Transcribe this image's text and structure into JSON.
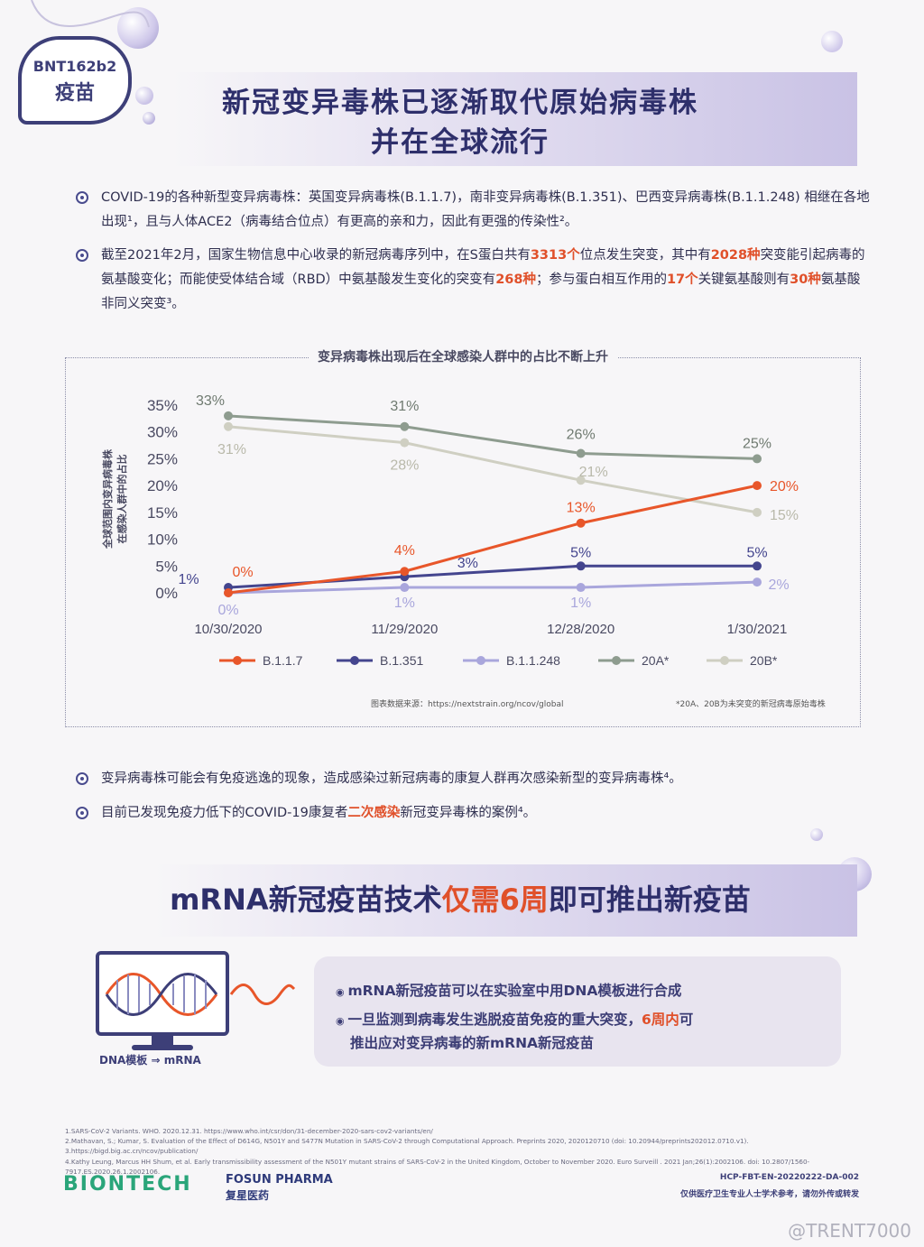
{
  "badge": {
    "line1": "BNT162b2",
    "line2": "疫苗"
  },
  "header": {
    "title_line1": "新冠变异毒株已逐渐取代原始病毒株",
    "title_line2": "并在全球流行"
  },
  "bullets1": [
    {
      "parts": [
        {
          "t": "COVID-19的各种新型变异病毒株：英国变异病毒株(B.1.1.7)，南非变异病毒株(B.1.351)、巴西变异病毒株(B.1.1.248) 相继在各地出现¹，且与人体ACE2（病毒结合位点）有更高的亲和力，因此有更强的传染性²。",
          "h": false
        }
      ]
    },
    {
      "parts": [
        {
          "t": "截至2021年2月，国家生物信息中心收录的新冠病毒序列中，在S蛋白共有",
          "h": false
        },
        {
          "t": "3313个",
          "h": true
        },
        {
          "t": "位点发生突变，其中有",
          "h": false
        },
        {
          "t": "2028种",
          "h": true
        },
        {
          "t": "突变能引起病毒的氨基酸变化；而能使受体结合域（RBD）中氨基酸发生变化的突变有",
          "h": false
        },
        {
          "t": "268种",
          "h": true
        },
        {
          "t": "；参与蛋白相互作用的",
          "h": false
        },
        {
          "t": "17个",
          "h": true
        },
        {
          "t": "关键氨基酸则有",
          "h": false
        },
        {
          "t": "30种",
          "h": true
        },
        {
          "t": "氨基酸非同义突变³。",
          "h": false
        }
      ]
    }
  ],
  "chart_data": {
    "type": "line",
    "title": "变异病毒株出现后在全球感染人群中的占比不断上升",
    "ylabel_line1": "全球范围内变异病毒株",
    "ylabel_line2": "在感染人群中的占比",
    "categories": [
      "10/30/2020",
      "11/29/2020",
      "12/28/2020",
      "1/30/2021"
    ],
    "y_ticks": [
      "0%",
      "5%",
      "10%",
      "15%",
      "20%",
      "25%",
      "30%",
      "35%"
    ],
    "ylim": [
      0,
      35
    ],
    "series": [
      {
        "name": "B.1.1.7",
        "values": [
          0,
          4,
          13,
          20
        ],
        "color": "#e8562a",
        "labels": [
          "0%",
          "4%",
          "13%",
          "20%"
        ]
      },
      {
        "name": "B.1.351",
        "values": [
          1,
          3,
          5,
          5
        ],
        "color": "#44458e",
        "labels": [
          "1%",
          "3%",
          "5%",
          "5%"
        ]
      },
      {
        "name": "B.1.1.248",
        "values": [
          0,
          1,
          1,
          2
        ],
        "color": "#a9a6dc",
        "labels": [
          "0%",
          "1%",
          "1%",
          "2%"
        ]
      },
      {
        "name": "20A*",
        "values": [
          33,
          31,
          26,
          25
        ],
        "color": "#8e9c8f",
        "labels": [
          "33%",
          "31%",
          "26%",
          "25%"
        ]
      },
      {
        "name": "20B*",
        "values": [
          31,
          28,
          21,
          15
        ],
        "color": "#cfcfc2",
        "labels": [
          "31%",
          "28%",
          "21%",
          "15%"
        ]
      }
    ],
    "source": "图表数据来源：https://nextstrain.org/ncov/global",
    "footnote": "*20A、20B为未突变的新冠病毒原始毒株"
  },
  "bullets2": [
    {
      "parts": [
        {
          "t": "变异病毒株可能会有免疫逃逸的现象，造成感染过新冠病毒的康复人群再次感染新型的变异病毒株⁴。",
          "h": false
        }
      ]
    },
    {
      "parts": [
        {
          "t": "目前已发现免疫力低下的COVID-19康复者",
          "h": false
        },
        {
          "t": "二次感染",
          "h": true
        },
        {
          "t": "新冠变异毒株的案例⁴。",
          "h": false
        }
      ]
    }
  ],
  "section2": {
    "title_a": "mRNA新冠疫苗技术",
    "title_b": "仅需6周",
    "title_c": "即可推出新疫苗"
  },
  "monitor_caption": "DNA模板 ⇒ mRNA",
  "mrna_box": {
    "line1": "mRNA新冠疫苗可以在实验室中用DNA模板进行合成",
    "line2_a": "一旦监测到病毒发生逃脱疫苗免疫的重大突变，",
    "line2_b": "6周内",
    "line2_c": "可",
    "line3": "推出应对变异病毒的新mRNA新冠疫苗"
  },
  "references": [
    "1.SARS-CoV-2 Variants. WHO. 2020.12.31. https://www.who.int/csr/don/31-december-2020-sars-cov2-variants/en/",
    "2.Mathavan, S.; Kumar, S. Evaluation of the Effect of D614G, N501Y and S477N Mutation in SARS-CoV-2 through Computational Approach. Preprints 2020, 2020120710 (doi: 10.20944/preprints202012.0710.v1).",
    "3.https://bigd.big.ac.cn/ncov/publication/",
    "4.Kathy Leung, Marcus HH Shum, et al. Early transmissibility assessment of the N501Y mutant strains of SARS-CoV-2 in the United Kingdom, October to November 2020. Euro Surveill . 2021 Jan;26(1):2002106. doi: 10.2807/1560-7917.ES.2020.26.1.2002106."
  ],
  "footer": {
    "biontech": "BIONTECH",
    "fosun_en": "FOSUN PHARMA",
    "fosun_cn": "复星医药",
    "code": "HCP-FBT-EN-20220222-DA-002",
    "notice": "仅供医疗卫生专业人士学术参考，请勿外传或转发",
    "watermark": "@TRENT7000"
  }
}
